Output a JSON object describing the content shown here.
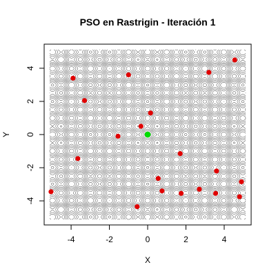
{
  "chart_data": {
    "type": "scatter",
    "title": "PSO en Rastrigin - Iteración 1",
    "xlabel": "X",
    "ylabel": "Y",
    "xlim": [
      -5.12,
      5.12
    ],
    "ylim": [
      -5.12,
      5.12
    ],
    "xticks": [
      -4,
      -2,
      0,
      2,
      4
    ],
    "xtick_labels": [
      "-4",
      "-2",
      "0",
      "2",
      "4"
    ],
    "yticks": [
      -4,
      -2,
      0,
      2,
      4
    ],
    "ytick_labels": [
      "-4",
      "-2",
      "0",
      "2",
      "4"
    ],
    "background": "contour",
    "particle_color": "#e00000",
    "optimum_color": "#00dd00",
    "contour_color": "#555555",
    "optimum": {
      "x": 0.0,
      "y": 0.0
    },
    "particles": [
      {
        "x": 4.55,
        "y": 4.5
      },
      {
        "x": 3.2,
        "y": 3.75
      },
      {
        "x": -1.0,
        "y": 3.6
      },
      {
        "x": -3.9,
        "y": 3.4
      },
      {
        "x": -3.3,
        "y": 2.05
      },
      {
        "x": 0.15,
        "y": 1.3
      },
      {
        "x": -0.35,
        "y": 0.5
      },
      {
        "x": -1.55,
        "y": -0.1
      },
      {
        "x": 1.7,
        "y": -1.15
      },
      {
        "x": -3.65,
        "y": -1.45
      },
      {
        "x": 3.6,
        "y": -2.2
      },
      {
        "x": 0.55,
        "y": -2.65
      },
      {
        "x": 4.9,
        "y": -2.85
      },
      {
        "x": 2.7,
        "y": -3.3
      },
      {
        "x": 0.75,
        "y": -3.4
      },
      {
        "x": -5.05,
        "y": -3.45
      },
      {
        "x": 1.75,
        "y": -3.55
      },
      {
        "x": 3.55,
        "y": -3.55
      },
      {
        "x": 4.8,
        "y": -3.75
      },
      {
        "x": -0.55,
        "y": -4.35
      }
    ]
  }
}
